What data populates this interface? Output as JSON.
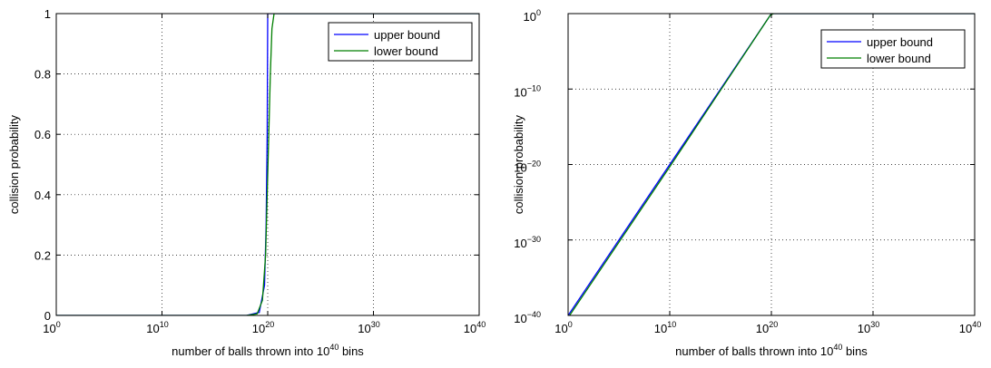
{
  "chart_data": [
    {
      "type": "line",
      "xscale": "log",
      "yscale": "linear",
      "xlim": [
        "1e0",
        "1e40"
      ],
      "ylim": [
        0,
        1
      ],
      "grid": true,
      "legend_position": "top-right",
      "xlabel": {
        "prefix": "number of balls thrown into 10",
        "sup": "40",
        "suffix": " bins"
      },
      "ylabel": "collision probability",
      "xticks": [
        {
          "exp": 0,
          "base": "10",
          "sup": "0"
        },
        {
          "exp": 10,
          "base": "10",
          "sup": "10"
        },
        {
          "exp": 20,
          "base": "10",
          "sup": "20"
        },
        {
          "exp": 30,
          "base": "10",
          "sup": "30"
        },
        {
          "exp": 40,
          "base": "10",
          "sup": "40"
        }
      ],
      "yticks": [
        {
          "value": 0,
          "label": "0"
        },
        {
          "value": 0.2,
          "label": "0.2"
        },
        {
          "value": 0.4,
          "label": "0.4"
        },
        {
          "value": 0.6,
          "label": "0.6"
        },
        {
          "value": 0.8,
          "label": "0.8"
        },
        {
          "value": 1,
          "label": "1"
        }
      ],
      "series": [
        {
          "name": "upper bound",
          "color": "#0000ff",
          "points": [
            [
              0,
              0
            ],
            [
              18,
              0.0
            ],
            [
              19.2,
              0.01
            ],
            [
              19.7,
              0.1
            ],
            [
              19.85,
              0.3
            ],
            [
              19.95,
              0.6
            ],
            [
              20.0,
              1
            ],
            [
              40,
              1
            ]
          ]
        },
        {
          "name": "lower bound",
          "color": "#007f00",
          "points": [
            [
              0,
              0
            ],
            [
              18,
              0.0
            ],
            [
              19,
              0.005
            ],
            [
              19.5,
              0.05
            ],
            [
              19.8,
              0.2
            ],
            [
              19.95,
              0.4
            ],
            [
              20.1,
              0.6
            ],
            [
              20.25,
              0.8
            ],
            [
              20.4,
              0.95
            ],
            [
              20.6,
              1
            ],
            [
              40,
              1
            ]
          ]
        }
      ]
    },
    {
      "type": "line",
      "xscale": "log",
      "yscale": "log",
      "xlim": [
        "1e0",
        "1e40"
      ],
      "ylim": [
        "1e-40",
        "1e0"
      ],
      "grid": true,
      "legend_position": "top-right",
      "xlabel": {
        "prefix": "number of balls thrown into 10",
        "sup": "40",
        "suffix": " bins"
      },
      "ylabel": "collision probability",
      "xticks": [
        {
          "exp": 0,
          "base": "10",
          "sup": "0"
        },
        {
          "exp": 10,
          "base": "10",
          "sup": "10"
        },
        {
          "exp": 20,
          "base": "10",
          "sup": "20"
        },
        {
          "exp": 30,
          "base": "10",
          "sup": "30"
        },
        {
          "exp": 40,
          "base": "10",
          "sup": "40"
        }
      ],
      "yticks": [
        {
          "exp": -40,
          "base": "10",
          "sup": "−40"
        },
        {
          "exp": -30,
          "base": "10",
          "sup": "−30"
        },
        {
          "exp": -20,
          "base": "10",
          "sup": "−20"
        },
        {
          "exp": -10,
          "base": "10",
          "sup": "−10"
        },
        {
          "exp": 0,
          "base": "10",
          "sup": "0"
        }
      ],
      "series": [
        {
          "name": "upper bound",
          "color": "#0000ff",
          "points": [
            [
              0,
              -40
            ],
            [
              10,
              -20
            ],
            [
              20,
              0
            ],
            [
              40,
              0
            ]
          ]
        },
        {
          "name": "lower bound",
          "color": "#007f00",
          "points": [
            [
              0,
              -40.3
            ],
            [
              10,
              -20.3
            ],
            [
              19.9,
              -0.2
            ],
            [
              20.2,
              0
            ],
            [
              40,
              0
            ]
          ]
        }
      ]
    }
  ]
}
